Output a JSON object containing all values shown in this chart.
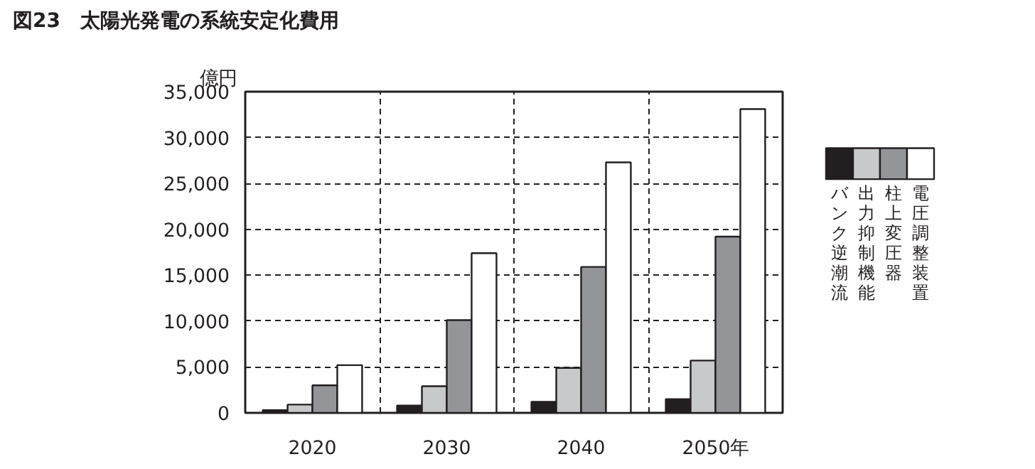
{
  "chart_data": {
    "type": "bar",
    "title": "図23　太陽光発電の系統安定化費用",
    "ylabel": "億円",
    "categories": [
      "2020",
      "2030",
      "2040",
      "2050年"
    ],
    "series": [
      {
        "name": "バンク逆潮流",
        "color": "#231f20",
        "values": [
          300,
          800,
          1200,
          1500
        ]
      },
      {
        "name": "出力抑制機能",
        "color": "#c8c9ca",
        "values": [
          900,
          2900,
          4900,
          5700
        ]
      },
      {
        "name": "柱上変圧器",
        "color": "#939598",
        "values": [
          3000,
          10100,
          15900,
          19200
        ]
      },
      {
        "name": "電圧調整装置",
        "color": "#ffffff",
        "values": [
          5200,
          17400,
          27300,
          33100
        ]
      }
    ],
    "ylim": [
      0,
      35000
    ],
    "yticks": [
      0,
      {
        "value": 5000,
        "label": "5,000"
      },
      {
        "value": 10000,
        "label": "10,000"
      },
      {
        "value": 15000,
        "label": "15,000"
      },
      {
        "value": 20000,
        "label": "20,000"
      },
      {
        "value": 25000,
        "label": "25,000"
      },
      {
        "value": 30000,
        "label": "30,000"
      },
      {
        "value": 35000,
        "label": "35,000"
      }
    ],
    "grid": true,
    "legend": "right"
  }
}
